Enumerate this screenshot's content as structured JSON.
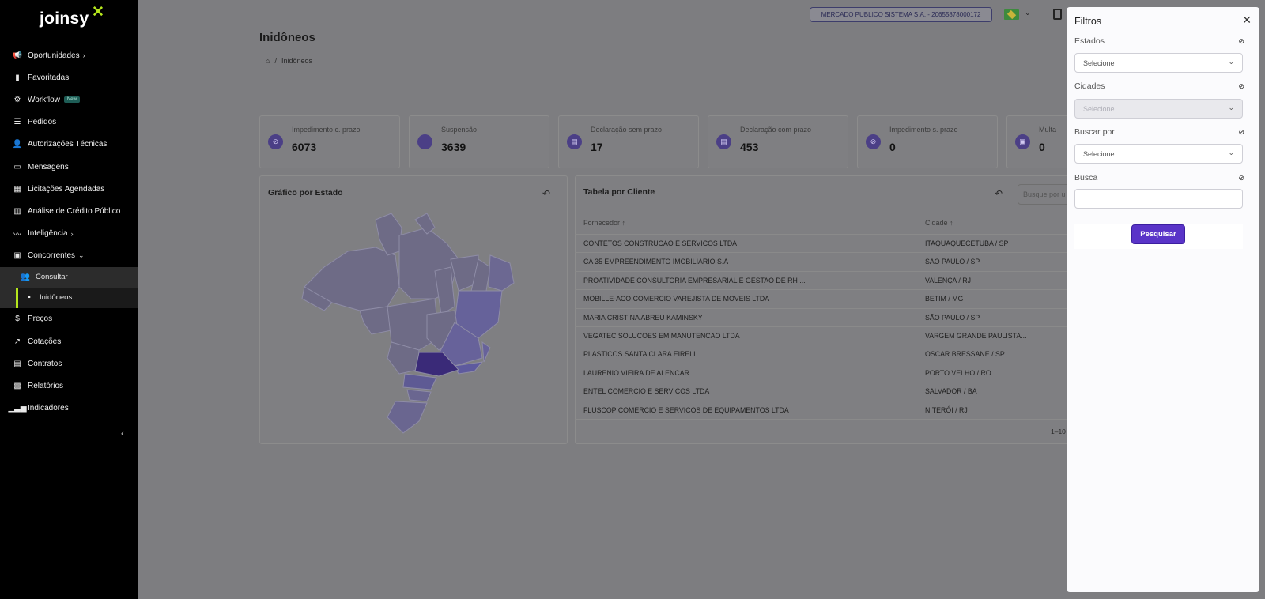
{
  "sidebar": {
    "logo": "joinsy",
    "logo_mark": "✕",
    "items": [
      {
        "label": "Oportunidades",
        "icon": "megaphone-icon",
        "chevron": "›"
      },
      {
        "label": "Favoritadas",
        "icon": "bookmark-icon"
      },
      {
        "label": "Workflow",
        "icon": "workflow-icon",
        "badge": "New"
      },
      {
        "label": "Pedidos",
        "icon": "list-icon"
      },
      {
        "label": "Autorizações Técnicas",
        "icon": "user-check-icon"
      },
      {
        "label": "Mensagens",
        "icon": "chat-icon"
      },
      {
        "label": "Licitações Agendadas",
        "icon": "calendar-icon"
      },
      {
        "label": "Análise de Crédito Público",
        "icon": "bar-chart-icon"
      },
      {
        "label": "Inteligência",
        "icon": "trend-icon",
        "chevron": "›"
      },
      {
        "label": "Concorrentes",
        "icon": "competitors-icon",
        "chevron": "⌄"
      }
    ],
    "sub_items": [
      {
        "label": "Consultar",
        "icon": "people-icon"
      },
      {
        "label": "Inidôneos",
        "icon": "doc-icon"
      }
    ],
    "items_after": [
      {
        "label": "Preços",
        "icon": "dollar-icon"
      },
      {
        "label": "Cotações",
        "icon": "trend-up-icon"
      },
      {
        "label": "Contratos",
        "icon": "contract-icon"
      },
      {
        "label": "Relatórios",
        "icon": "report-icon"
      },
      {
        "label": "Indicadores",
        "icon": "indicator-icon"
      }
    ],
    "collapse_glyph": "‹"
  },
  "topbar": {
    "company": "MERCADO PUBLICO SISTEMA S.A. - 20655878000172"
  },
  "page": {
    "title": "Inidôneos",
    "breadcrumb_home": "⌂",
    "breadcrumb_sep": "/",
    "breadcrumb_current": "Inidôneos"
  },
  "cards": [
    {
      "label": "Impedimento c. prazo",
      "value": "6073",
      "icon": "ban-doc-icon"
    },
    {
      "label": "Suspensão",
      "value": "3639",
      "icon": "alert-icon"
    },
    {
      "label": "Declaração sem prazo",
      "value": "17",
      "icon": "document-icon"
    },
    {
      "label": "Declaração com prazo",
      "value": "453",
      "icon": "document-icon"
    },
    {
      "label": "Impedimento s. prazo",
      "value": "0",
      "icon": "ban-doc-icon"
    },
    {
      "label": "Multa",
      "value": "0",
      "icon": "money-icon"
    }
  ],
  "map_panel": {
    "title": "Gráfico por Estado"
  },
  "table_panel": {
    "title": "Tabela por Cliente",
    "search_placeholder": "Busque por u",
    "col_fornecedor": "Fornecedor ↑",
    "col_cidade": "Cidade ↑",
    "rows": [
      {
        "fornecedor": "CONTETOS CONSTRUCAO E SERVICOS LTDA",
        "cidade": "ITAQUAQUECETUBA / SP"
      },
      {
        "fornecedor": "CA 35 EMPREENDIMENTO IMOBILIARIO S.A",
        "cidade": "SÃO PAULO / SP"
      },
      {
        "fornecedor": "PROATIVIDADE CONSULTORIA EMPRESARIAL E GESTAO DE RH ...",
        "cidade": "VALENÇA / RJ"
      },
      {
        "fornecedor": "MOBILLE-ACO COMERCIO VAREJISTA DE MOVEIS LTDA",
        "cidade": "BETIM / MG"
      },
      {
        "fornecedor": "MARIA CRISTINA ABREU KAMINSKY",
        "cidade": "SÃO PAULO / SP"
      },
      {
        "fornecedor": "VEGATEC SOLUCOES EM MANUTENCAO LTDA",
        "cidade": "VARGEM GRANDE PAULISTA..."
      },
      {
        "fornecedor": "PLASTICOS SANTA CLARA EIRELI",
        "cidade": "OSCAR BRESSANE / SP"
      },
      {
        "fornecedor": "LAURENIO VIEIRA DE ALENCAR",
        "cidade": "PORTO VELHO / RO"
      },
      {
        "fornecedor": "ENTEL COMERCIO E SERVICOS LTDA",
        "cidade": "SALVADOR / BA"
      },
      {
        "fornecedor": "FLUSCOP COMERCIO E SERVICOS DE EQUIPAMENTOS LTDA",
        "cidade": "NITERÓI / RJ"
      }
    ],
    "pager": "1–10"
  },
  "filters": {
    "title": "Filtros",
    "close": "✕",
    "estados_label": "Estados",
    "estados_value": "Selecione",
    "cidades_label": "Cidades",
    "cidades_value": "Selecione",
    "buscar_por_label": "Buscar por",
    "buscar_por_value": "Selecione",
    "busca_label": "Busca",
    "busca_value": "",
    "submit": "Pesquisar"
  },
  "colors": {
    "accent": "#5a34c8",
    "brand_lime": "#b5e61d",
    "sidebar_bg": "#000000",
    "overlay": "#7d7d80"
  }
}
